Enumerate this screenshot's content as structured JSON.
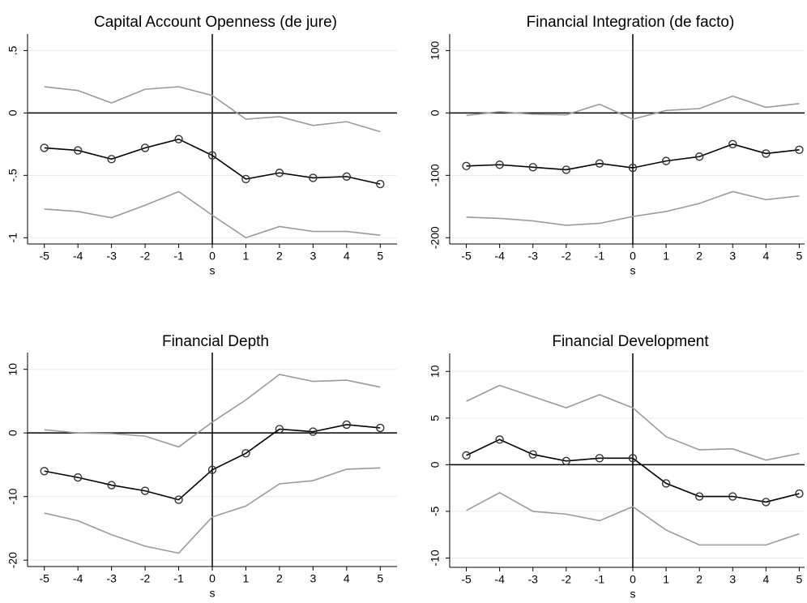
{
  "chart_data": [
    {
      "type": "line",
      "title": "Capital Account Openness (de jure)",
      "x_label": "s",
      "x": [
        -5,
        -4,
        -3,
        -2,
        -1,
        0,
        1,
        2,
        3,
        4,
        5
      ],
      "xlim": [
        -5.5,
        5.5
      ],
      "xticks": [
        -5,
        -4,
        -3,
        -2,
        -1,
        0,
        1,
        2,
        3,
        4,
        5
      ],
      "ylim": [
        -1.05,
        0.6
      ],
      "yticks": [
        {
          "value": 0.5,
          "label": ".5"
        },
        0,
        {
          "value": -0.5,
          "label": "-.5"
        },
        -1
      ],
      "grid": true,
      "hline": 0,
      "vline": 0,
      "series": [
        {
          "color": "#9a9a9a",
          "values": [
            0.21,
            0.18,
            0.08,
            0.19,
            0.21,
            0.14,
            -0.05,
            -0.03,
            -0.1,
            -0.07,
            -0.15
          ]
        },
        {
          "color": "#9a9a9a",
          "values": [
            -0.77,
            -0.79,
            -0.84,
            -0.74,
            -0.63,
            -0.82,
            -1.0,
            -0.91,
            -0.95,
            -0.95,
            -0.98
          ]
        },
        {
          "color": "#000000",
          "marker": "circle",
          "values": [
            -0.28,
            -0.3,
            -0.37,
            -0.28,
            -0.21,
            -0.34,
            -0.53,
            -0.48,
            -0.52,
            -0.51,
            -0.57
          ]
        }
      ]
    },
    {
      "type": "line",
      "title": "Financial Integration (de facto)",
      "x_label": "s",
      "x": [
        -5,
        -4,
        -3,
        -2,
        -1,
        0,
        1,
        2,
        3,
        4,
        5
      ],
      "xlim": [
        -5.5,
        5.5
      ],
      "xticks": [
        -5,
        -4,
        -3,
        -2,
        -1,
        0,
        1,
        2,
        3,
        4,
        5
      ],
      "ylim": [
        -210,
        120
      ],
      "yticks": [
        100,
        0,
        -100,
        -200
      ],
      "grid": true,
      "hline": 0,
      "vline": 0,
      "series": [
        {
          "color": "#9a9a9a",
          "values": [
            -4,
            2,
            -2,
            -3,
            14,
            -10,
            4,
            7,
            27,
            9,
            15
          ]
        },
        {
          "color": "#9a9a9a",
          "values": [
            -167,
            -169,
            -173,
            -180,
            -177,
            -166,
            -158,
            -145,
            -126,
            -139,
            -133
          ]
        },
        {
          "color": "#000000",
          "marker": "circle",
          "values": [
            -85,
            -83,
            -87,
            -91,
            -81,
            -88,
            -77,
            -70,
            -50,
            -65,
            -59
          ]
        }
      ]
    },
    {
      "type": "line",
      "title": "Financial Depth",
      "x_label": "s",
      "x": [
        -5,
        -4,
        -3,
        -2,
        -1,
        0,
        1,
        2,
        3,
        4,
        5
      ],
      "xlim": [
        -5.5,
        5.5
      ],
      "xticks": [
        -5,
        -4,
        -3,
        -2,
        -1,
        0,
        1,
        2,
        3,
        4,
        5
      ],
      "ylim": [
        -21,
        12
      ],
      "yticks": [
        10,
        0,
        -10,
        -20
      ],
      "grid": true,
      "hline": 0,
      "vline": 0,
      "series": [
        {
          "color": "#9a9a9a",
          "values": [
            0.5,
            0,
            -0.1,
            -0.5,
            -2.2,
            1.7,
            5.2,
            9.2,
            8.1,
            8.3,
            7.2
          ]
        },
        {
          "color": "#9a9a9a",
          "values": [
            -12.6,
            -13.8,
            -16,
            -17.8,
            -18.9,
            -13.2,
            -11.5,
            -8,
            -7.5,
            -5.7,
            -5.5
          ]
        },
        {
          "color": "#000000",
          "marker": "circle",
          "values": [
            -6,
            -7,
            -8.2,
            -9.1,
            -10.5,
            -5.8,
            -3.2,
            0.6,
            0.2,
            1.3,
            0.8
          ]
        }
      ]
    },
    {
      "type": "line",
      "title": "Financial Development",
      "x_label": "s",
      "x": [
        -5,
        -4,
        -3,
        -2,
        -1,
        0,
        1,
        2,
        3,
        4,
        5
      ],
      "xlim": [
        -5.5,
        5.5
      ],
      "xticks": [
        -5,
        -4,
        -3,
        -2,
        -1,
        0,
        1,
        2,
        3,
        4,
        5
      ],
      "ylim": [
        -11,
        11.5
      ],
      "yticks": [
        10,
        5,
        0,
        -5,
        -10
      ],
      "grid": true,
      "hline": 0,
      "vline": 0,
      "series": [
        {
          "color": "#9a9a9a",
          "values": [
            6.8,
            8.5,
            7.3,
            6.1,
            7.5,
            6.1,
            3.0,
            1.6,
            1.7,
            0.5,
            1.2
          ]
        },
        {
          "color": "#9a9a9a",
          "values": [
            -4.9,
            -3,
            -5,
            -5.3,
            -6,
            -4.5,
            -7,
            -8.6,
            -8.6,
            -8.6,
            -7.4
          ]
        },
        {
          "color": "#000000",
          "marker": "circle",
          "values": [
            1,
            2.7,
            1.1,
            0.4,
            0.7,
            0.7,
            -2,
            -3.4,
            -3.4,
            -4,
            -3.1
          ]
        }
      ]
    }
  ]
}
